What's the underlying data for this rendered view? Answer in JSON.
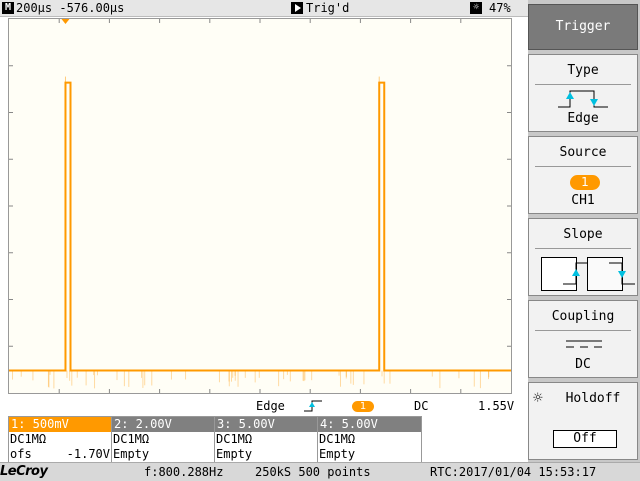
{
  "top_bar": {
    "timebase_icon": "M",
    "timebase": "200µs  -576.00µs",
    "trigger_icon": "play-icon",
    "trigger_state": "Trig'd",
    "brightness_icon": "brightness-icon",
    "brightness": "47%"
  },
  "waveform": {
    "color": "#ff9900",
    "ground_marker": "1",
    "trigger_level_marker": "T",
    "pulses": [
      {
        "start_ms": 0.225,
        "end_ms": 0.245
      },
      {
        "start_ms": 1.475,
        "end_ms": 1.495
      }
    ],
    "x_range_ms": [
      0,
      2.0
    ],
    "baseline_level": 0.06,
    "pulse_level": 0.83,
    "trigger_level_fraction": 0.47
  },
  "trigger_line": {
    "label": "Edge",
    "channel": "1",
    "coupling": "DC",
    "level": "1.55V"
  },
  "channels": [
    {
      "header": "1: 500mV",
      "line1": "DC1MΩ",
      "line2_left": "ofs",
      "line2_right": "-1.70V",
      "active": true
    },
    {
      "header": "2: 2.00V",
      "line1": "DC1MΩ",
      "line2_left": "Empty",
      "line2_right": "",
      "active": false
    },
    {
      "header": "3: 5.00V",
      "line1": "DC1MΩ",
      "line2_left": "Empty",
      "line2_right": "",
      "active": false
    },
    {
      "header": "4: 5.00V",
      "line1": "DC1MΩ",
      "line2_left": "Empty",
      "line2_right": "",
      "active": false
    }
  ],
  "status_bar": {
    "logo": "LeCroy",
    "frequency": "f:800.288Hz",
    "acquisition": "250kS 500 points",
    "rtc": "RTC:2017/01/04 15:53:17"
  },
  "menu": {
    "title": "Trigger",
    "type": {
      "label": "Type",
      "value": "Edge"
    },
    "source": {
      "label": "Source",
      "badge": "1",
      "value": "CH1"
    },
    "slope": {
      "label": "Slope"
    },
    "coupling": {
      "label": "Coupling",
      "value": "DC"
    },
    "holdoff": {
      "label": "Holdoff",
      "value": "Off"
    }
  }
}
